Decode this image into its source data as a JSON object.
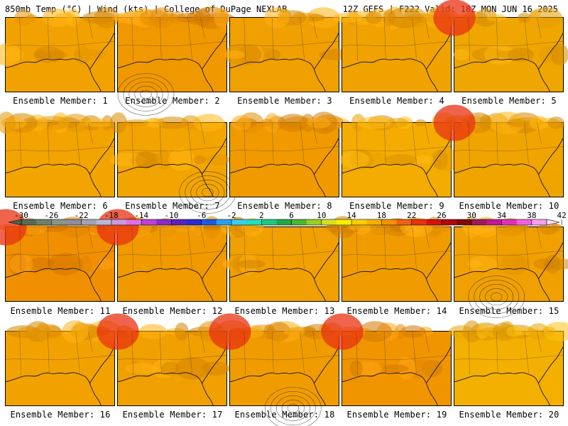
{
  "header": {
    "left": "850mb Temp (°C) | Wind (kts) | College of DuPage NEXLAB",
    "right": "12Z GEFS | F222 Valid: 18Z MON JUN 16 2025"
  },
  "colorbar": {
    "ticks": [
      "-30",
      "-26",
      "-22",
      "-18",
      "-14",
      "-10",
      "-6",
      "-2",
      "2",
      "6",
      "10",
      "14",
      "18",
      "22",
      "26",
      "30",
      "34",
      "38",
      "42"
    ],
    "colors": [
      "#556b55",
      "#6e806e",
      "#8a968a",
      "#8e8e9c",
      "#a3a3b8",
      "#b9b9d6",
      "#c99be0",
      "#e070e8",
      "#c040d8",
      "#8a2ad0",
      "#5a20c0",
      "#2a2ad8",
      "#1a5ae8",
      "#28a0f0",
      "#38d0f0",
      "#20e0c0",
      "#20c880",
      "#20a848",
      "#48b830",
      "#98d020",
      "#d8e020",
      "#f8f000",
      "#f8d000",
      "#f8b000",
      "#f89000",
      "#f06018",
      "#e83010",
      "#d81010",
      "#b00808",
      "#800808",
      "#a01860",
      "#c01898",
      "#e030c0",
      "#f060e0",
      "#f8a0f0"
    ]
  },
  "members": [
    {
      "label": "Ensemble Member: 1",
      "tone": "#f2a200"
    },
    {
      "label": "Ensemble Member: 2",
      "tone": "#f09800"
    },
    {
      "label": "Ensemble Member: 3",
      "tone": "#f0a000"
    },
    {
      "label": "Ensemble Member: 4",
      "tone": "#f0a200"
    },
    {
      "label": "Ensemble Member: 5",
      "tone": "#f0a600"
    },
    {
      "label": "Ensemble Member: 6",
      "tone": "#f2a400"
    },
    {
      "label": "Ensemble Member: 7",
      "tone": "#f2a400"
    },
    {
      "label": "Ensemble Member: 8",
      "tone": "#f09a00"
    },
    {
      "label": "Ensemble Member: 9",
      "tone": "#f4ac00"
    },
    {
      "label": "Ensemble Member: 10",
      "tone": "#f0a400"
    },
    {
      "label": "Ensemble Member: 11",
      "tone": "#f09000"
    },
    {
      "label": "Ensemble Member: 12",
      "tone": "#f09a00"
    },
    {
      "label": "Ensemble Member: 13",
      "tone": "#f0a000"
    },
    {
      "label": "Ensemble Member: 14",
      "tone": "#f09c00"
    },
    {
      "label": "Ensemble Member: 15",
      "tone": "#f0a000"
    },
    {
      "label": "Ensemble Member: 16",
      "tone": "#f2a200"
    },
    {
      "label": "Ensemble Member: 17",
      "tone": "#f0a000"
    },
    {
      "label": "Ensemble Member: 18",
      "tone": "#f09c00"
    },
    {
      "label": "Ensemble Member: 19",
      "tone": "#f09400"
    },
    {
      "label": "Ensemble Member: 20",
      "tone": "#f4b000"
    }
  ]
}
